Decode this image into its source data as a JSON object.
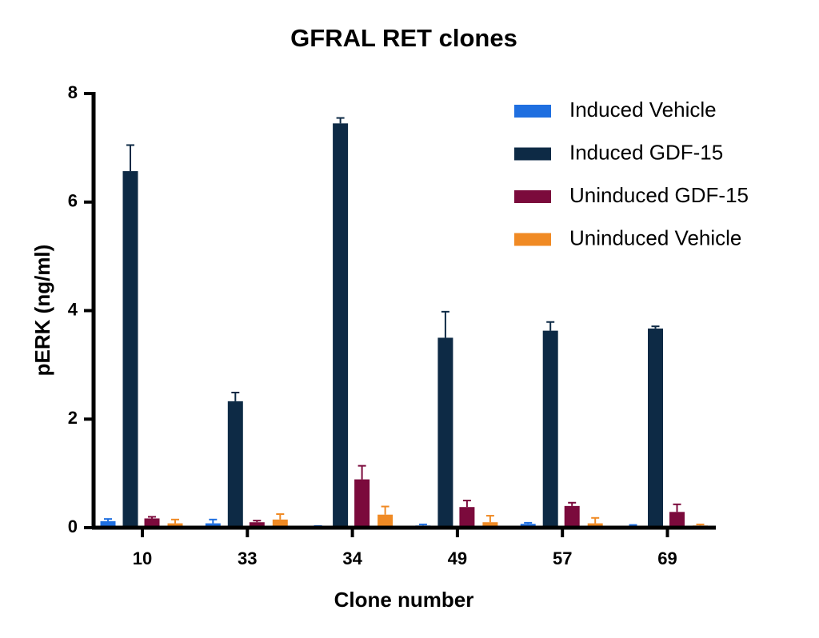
{
  "chart_data": {
    "type": "bar",
    "title": "GFRAL RET clones",
    "x_label": "Clone number",
    "y_label": "pERK (ng/ml)",
    "categories": [
      "10",
      "33",
      "34",
      "49",
      "57",
      "69"
    ],
    "series": [
      {
        "name": "Induced Vehicle",
        "color": "#1f6fe0",
        "values": [
          0.12,
          0.08,
          0.02,
          0.04,
          0.07,
          0.03
        ],
        "errors": [
          0.04,
          0.07,
          0.01,
          0.02,
          0.02,
          0.02
        ]
      },
      {
        "name": "Induced GDF-15",
        "color": "#0d2a45",
        "values": [
          6.57,
          2.33,
          7.45,
          3.5,
          3.63,
          3.67
        ],
        "errors": [
          0.48,
          0.16,
          0.1,
          0.48,
          0.16,
          0.04
        ]
      },
      {
        "name": "Uninduced GDF-15",
        "color": "#7b0a3c",
        "values": [
          0.17,
          0.1,
          0.89,
          0.38,
          0.4,
          0.29
        ],
        "errors": [
          0.03,
          0.03,
          0.25,
          0.12,
          0.06,
          0.14
        ]
      },
      {
        "name": "Uninduced Vehicle",
        "color": "#f08a24",
        "values": [
          0.08,
          0.15,
          0.24,
          0.1,
          0.08,
          0.04
        ],
        "errors": [
          0.07,
          0.1,
          0.15,
          0.12,
          0.1,
          0.02
        ]
      }
    ],
    "ylim": [
      0,
      8
    ],
    "yticks": [
      0,
      2,
      4,
      6,
      8
    ],
    "grid": false,
    "legend": "upper right"
  }
}
